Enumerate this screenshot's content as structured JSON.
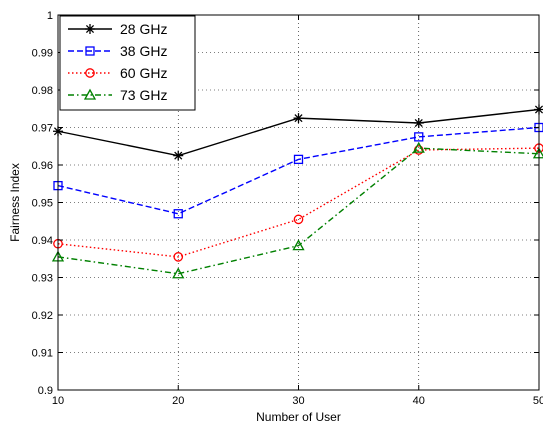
{
  "chart_data": {
    "type": "line",
    "title": "",
    "xlabel": "Number of User",
    "ylabel": "Fairness Index",
    "x": [
      10,
      20,
      30,
      40,
      50
    ],
    "xlim": [
      10,
      50
    ],
    "ylim": [
      0.9,
      1.0
    ],
    "xticks": [
      "10",
      "20",
      "30",
      "40",
      "50"
    ],
    "yticks": [
      "0.9",
      "0.91",
      "0.92",
      "0.93",
      "0.94",
      "0.95",
      "0.96",
      "0.97",
      "0.98",
      "0.99",
      "1"
    ],
    "grid": true,
    "legend_position": "top-left",
    "series": [
      {
        "name": "28 GHz",
        "values": [
          0.969,
          0.9625,
          0.9725,
          0.9712,
          0.9748
        ],
        "color": "#000000",
        "line_style": "solid",
        "marker": "star"
      },
      {
        "name": "38 GHz",
        "values": [
          0.9545,
          0.947,
          0.9615,
          0.9675,
          0.97
        ],
        "color": "#0000ff",
        "line_style": "dashed",
        "marker": "square"
      },
      {
        "name": "60 GHz",
        "values": [
          0.939,
          0.9355,
          0.9455,
          0.964,
          0.9645
        ],
        "color": "#ff0000",
        "line_style": "dotted",
        "marker": "circle"
      },
      {
        "name": "73 GHz",
        "values": [
          0.9355,
          0.931,
          0.9385,
          0.9645,
          0.963
        ],
        "color": "#008000",
        "line_style": "dashdot",
        "marker": "triangle"
      }
    ]
  }
}
